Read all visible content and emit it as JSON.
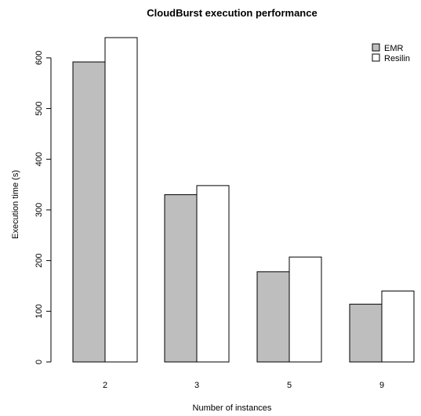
{
  "chart_data": {
    "type": "bar",
    "title": "CloudBurst execution performance",
    "xlabel": "Number of instances",
    "ylabel": "Execution time (s)",
    "categories": [
      "2",
      "3",
      "5",
      "9"
    ],
    "series": [
      {
        "name": "EMR",
        "values": [
          592,
          330,
          178,
          114
        ],
        "color": "#bebebe"
      },
      {
        "name": "Resilin",
        "values": [
          640,
          348,
          207,
          140
        ],
        "color": "#ffffff"
      }
    ],
    "yticks": [
      0,
      100,
      200,
      300,
      400,
      500,
      600
    ],
    "ylim": [
      0,
      640
    ],
    "grid": false,
    "legend_position": "top-right"
  }
}
